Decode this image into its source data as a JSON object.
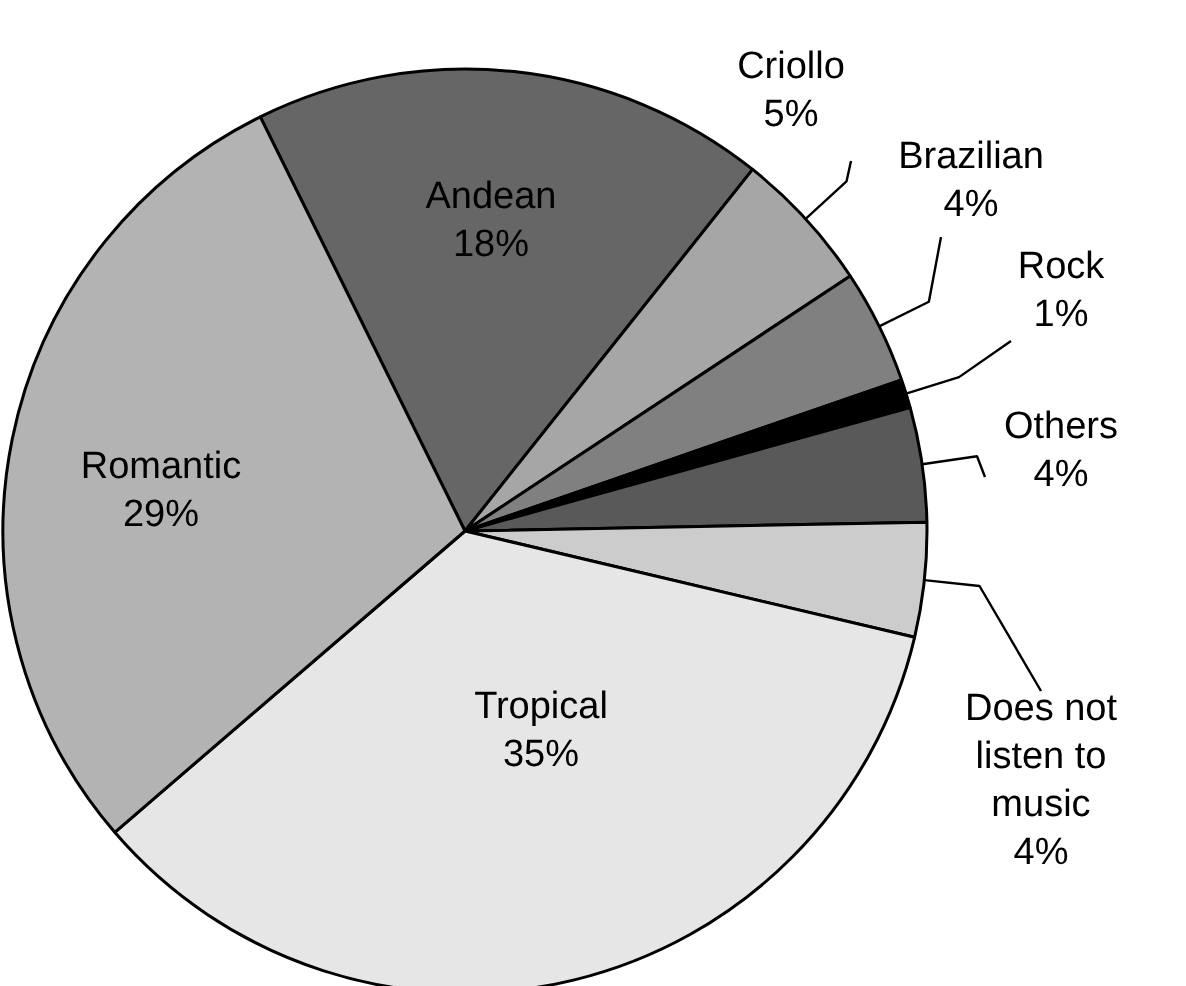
{
  "chart_data": {
    "type": "pie",
    "categories": [
      "Andean",
      "Criollo",
      "Brazilian",
      "Rock",
      "Others",
      "Does not\nlisten to\nmusic",
      "Tropical",
      "Romantic"
    ],
    "values": [
      18,
      5,
      4,
      1,
      4,
      4,
      35,
      29
    ],
    "value_labels": [
      "18%",
      "5%",
      "4%",
      "1%",
      "4%",
      "4%",
      "35%",
      "29%"
    ],
    "colors": [
      "#666666",
      "#a6a6a6",
      "#808080",
      "#000000",
      "#595959",
      "#cccccc",
      "#e6e6e6",
      "#b3b3b3"
    ]
  }
}
